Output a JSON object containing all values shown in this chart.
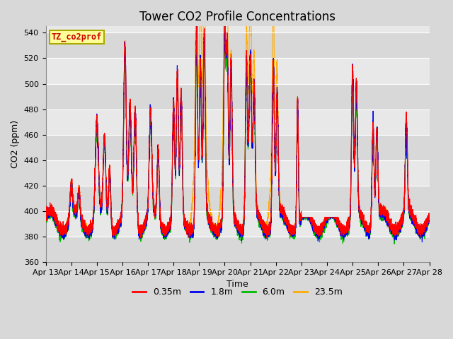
{
  "title": "Tower CO2 Profile Concentrations",
  "xlabel": "Time",
  "ylabel": "CO2 (ppm)",
  "legend_label": "TZ_co2prof",
  "series_labels": [
    "0.35m",
    "1.8m",
    "6.0m",
    "23.5m"
  ],
  "series_colors": [
    "#ff0000",
    "#0000ee",
    "#00bb00",
    "#ffaa00"
  ],
  "ylim": [
    360,
    545
  ],
  "yticks": [
    360,
    380,
    400,
    420,
    440,
    460,
    480,
    500,
    520,
    540
  ],
  "xtick_labels": [
    "Apr 13",
    "Apr 14",
    "Apr 15",
    "Apr 16",
    "Apr 17",
    "Apr 18",
    "Apr 19",
    "Apr 20",
    "Apr 21",
    "Apr 22",
    "Apr 23",
    "Apr 24",
    "Apr 25",
    "Apr 26",
    "Apr 27",
    "Apr 28"
  ],
  "n_points": 7200,
  "fig_bg": "#d8d8d8",
  "plot_bg": "#e8e8e8",
  "band_light": "#e8e8e8",
  "band_dark": "#d8d8d8",
  "box_facecolor": "#ffff99",
  "box_edgecolor": "#aaaa00",
  "title_fontsize": 12,
  "axis_label_fontsize": 9,
  "tick_fontsize": 8,
  "legend_fontsize": 9
}
